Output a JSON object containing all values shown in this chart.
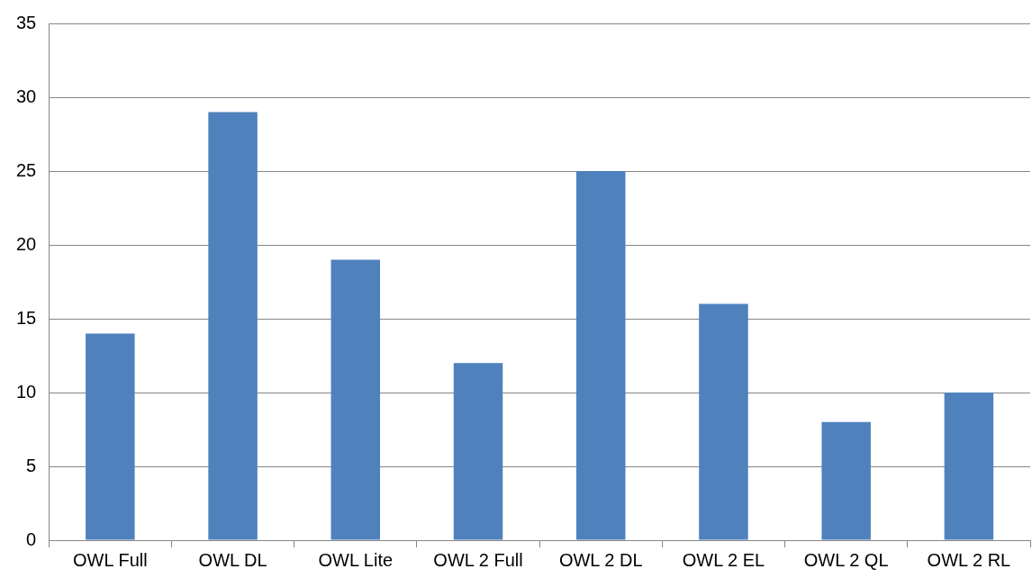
{
  "chart_data": {
    "type": "bar",
    "categories": [
      "OWL Full",
      "OWL DL",
      "OWL Lite",
      "OWL 2 Full",
      "OWL 2 DL",
      "OWL 2 EL",
      "OWL 2 QL",
      "OWL 2 RL"
    ],
    "values": [
      14,
      29,
      19,
      12,
      25,
      16,
      8,
      10
    ],
    "color": "#4f81bd",
    "ylim": [
      0,
      35
    ],
    "yticks": [
      0,
      5,
      10,
      15,
      20,
      25,
      30,
      35
    ],
    "grid": "y",
    "legend": false
  }
}
